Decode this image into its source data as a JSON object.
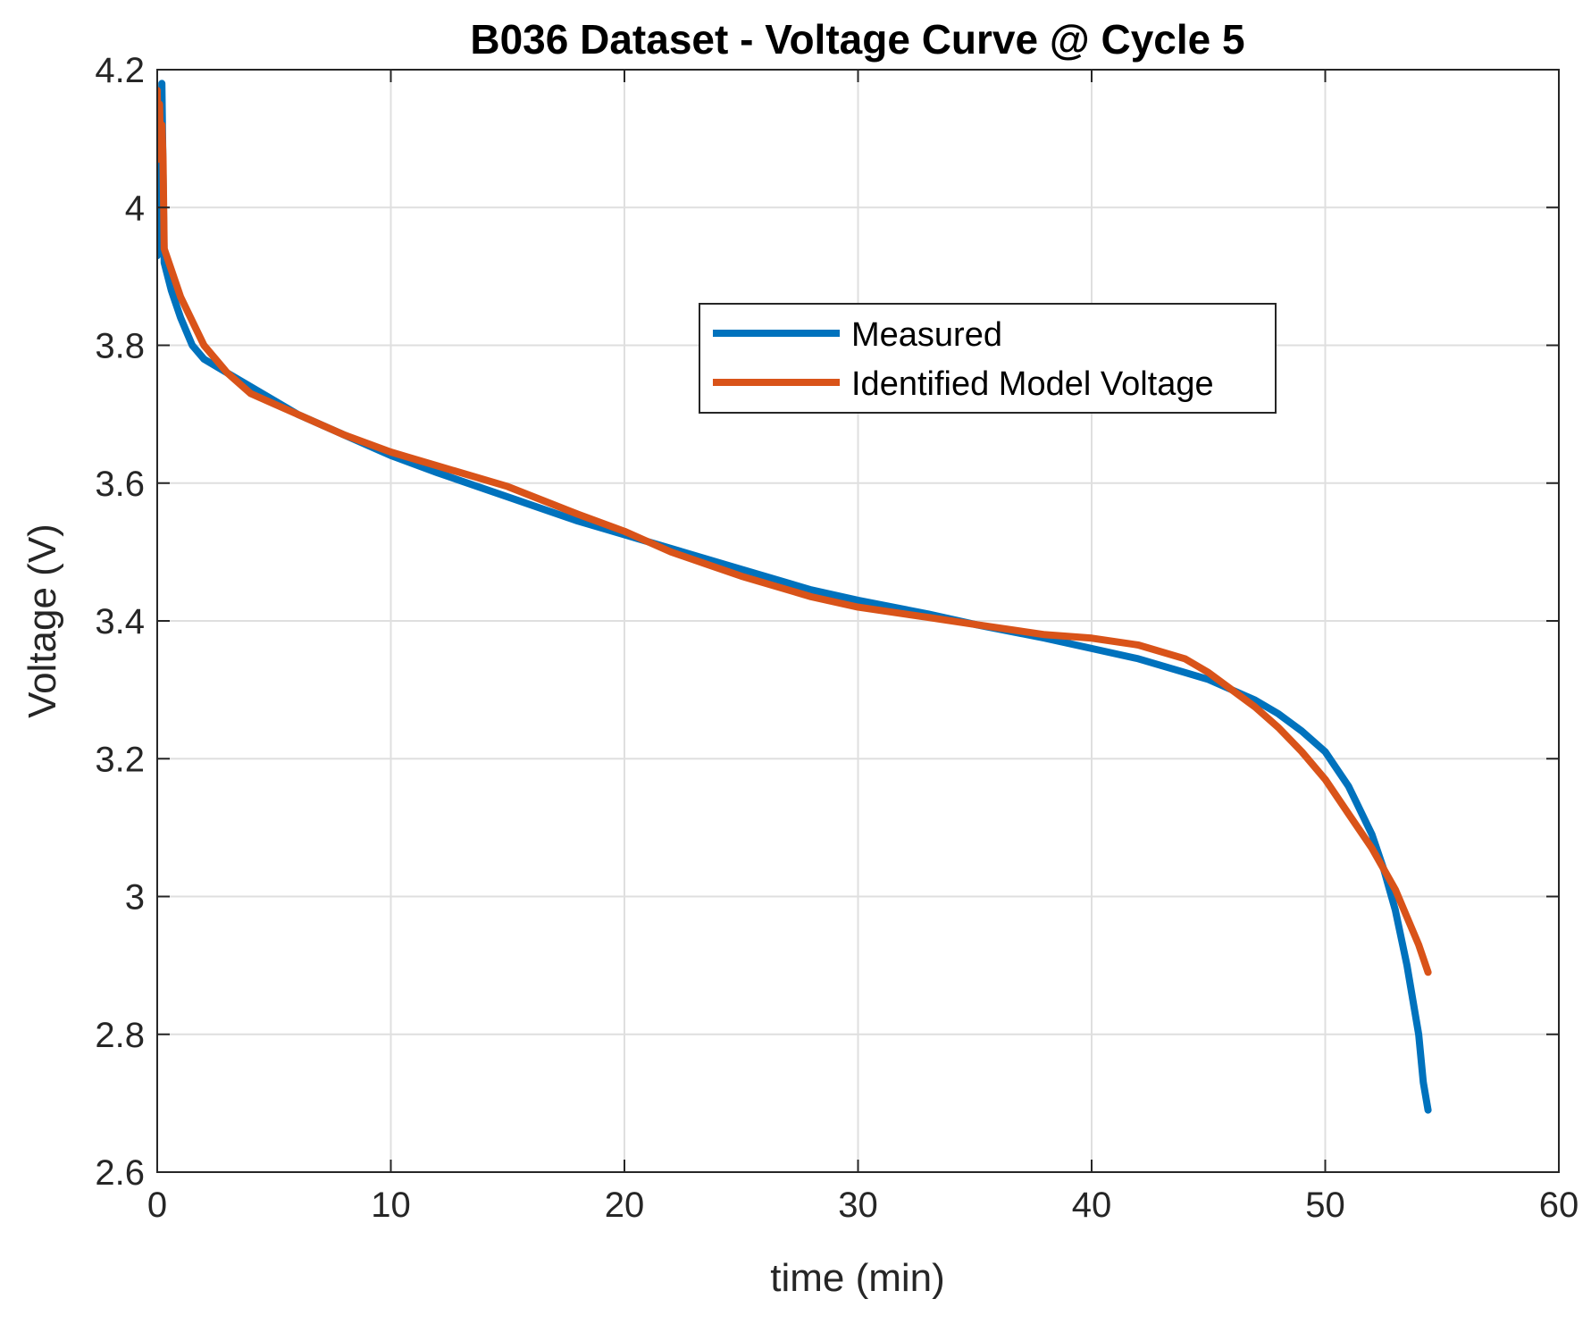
{
  "chart_data": {
    "type": "line",
    "title": "B036 Dataset - Voltage Curve @ Cycle 5",
    "xlabel": "time (min)",
    "ylabel": "Voltage (V)",
    "xlim": [
      0,
      60
    ],
    "ylim": [
      2.6,
      4.2
    ],
    "grid": true,
    "legend_position": "upper-center-right",
    "x_ticks": [
      0,
      10,
      20,
      30,
      40,
      50,
      60
    ],
    "x_tick_labels": [
      "0",
      "10",
      "20",
      "30",
      "40",
      "50",
      "60"
    ],
    "y_ticks": [
      2.6,
      2.8,
      3.0,
      3.2,
      3.4,
      3.6,
      3.8,
      4.0,
      4.2
    ],
    "y_tick_labels": [
      "2.6",
      "2.8",
      "3",
      "3.2",
      "3.4",
      "3.6",
      "3.8",
      "4",
      "4.2"
    ],
    "series": [
      {
        "name": "Measured",
        "color": "#0072BD",
        "x": [
          0,
          0.1,
          0.2,
          0.25,
          0.3,
          0.6,
          1,
          1.5,
          2,
          3,
          4,
          5,
          6,
          8,
          10,
          12,
          15,
          18,
          20,
          22,
          25,
          28,
          30,
          33,
          35,
          38,
          40,
          42,
          44,
          45,
          46,
          47,
          48,
          49,
          50,
          51,
          52,
          52.5,
          53,
          53.5,
          54,
          54.2,
          54.4
        ],
        "values": [
          3.93,
          3.95,
          4.18,
          4.05,
          3.92,
          3.88,
          3.84,
          3.8,
          3.78,
          3.76,
          3.74,
          3.72,
          3.7,
          3.67,
          3.64,
          3.615,
          3.58,
          3.545,
          3.525,
          3.505,
          3.475,
          3.445,
          3.43,
          3.41,
          3.395,
          3.375,
          3.36,
          3.345,
          3.325,
          3.315,
          3.3,
          3.285,
          3.265,
          3.24,
          3.21,
          3.16,
          3.09,
          3.04,
          2.98,
          2.9,
          2.8,
          2.73,
          2.69
        ]
      },
      {
        "name": "Identified Model Voltage",
        "color": "#D95319",
        "x": [
          0,
          0.05,
          0.1,
          0.15,
          0.2,
          0.25,
          0.3,
          0.5,
          1,
          2,
          3,
          4,
          5,
          6,
          8,
          10,
          12,
          15,
          18,
          20,
          22,
          25,
          28,
          30,
          33,
          35,
          38,
          40,
          42,
          44,
          45,
          46,
          47,
          48,
          49,
          50,
          51,
          52,
          53,
          54,
          54.4
        ],
        "values": [
          4.17,
          4.07,
          4.15,
          4.07,
          4.12,
          4.07,
          3.94,
          3.92,
          3.87,
          3.8,
          3.76,
          3.73,
          3.715,
          3.7,
          3.67,
          3.645,
          3.625,
          3.595,
          3.555,
          3.53,
          3.5,
          3.465,
          3.435,
          3.42,
          3.405,
          3.395,
          3.38,
          3.375,
          3.365,
          3.345,
          3.325,
          3.3,
          3.275,
          3.245,
          3.21,
          3.17,
          3.12,
          3.07,
          3.01,
          2.93,
          2.89
        ]
      }
    ]
  }
}
